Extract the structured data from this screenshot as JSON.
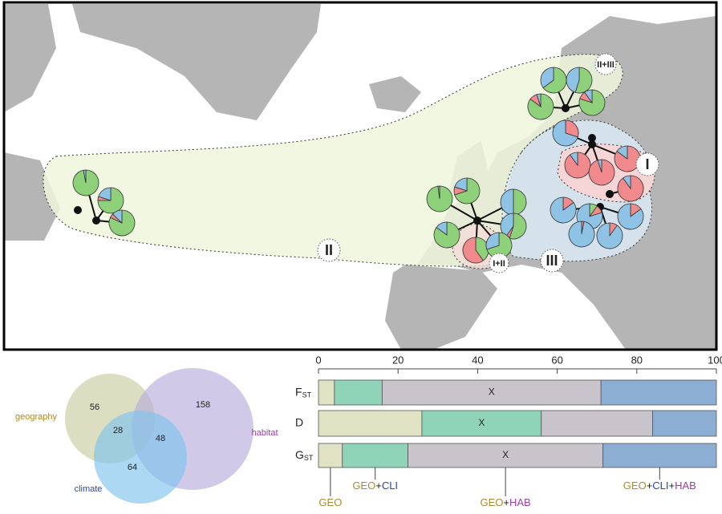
{
  "chart_data": [
    {
      "type": "pie-map",
      "region_labels": [
        "II",
        "III",
        "I",
        "I+II",
        "II+III"
      ],
      "colors": [
        "#8fd17a",
        "#f08a8c",
        "#8fc3e6"
      ],
      "pies": [
        {
          "values": [
            97,
            0,
            3
          ]
        },
        {
          "values": [
            75,
            5,
            20
          ]
        },
        {
          "values": [
            82,
            5,
            13
          ]
        },
        {
          "values": [
            98,
            0,
            2
          ]
        },
        {
          "values": [
            70,
            10,
            20
          ]
        },
        {
          "values": [
            50,
            0,
            50
          ]
        },
        {
          "values": [
            85,
            0,
            15
          ]
        },
        {
          "values": [
            40,
            60,
            0
          ]
        },
        {
          "values": [
            55,
            5,
            40
          ]
        },
        {
          "values": [
            70,
            0,
            30
          ]
        },
        {
          "values": [
            65,
            0,
            35
          ]
        },
        {
          "values": [
            55,
            0,
            45
          ]
        },
        {
          "values": [
            85,
            10,
            5
          ]
        },
        {
          "values": [
            80,
            10,
            10
          ]
        },
        {
          "values": [
            0,
            30,
            70
          ]
        },
        {
          "values": [
            0,
            90,
            10
          ]
        },
        {
          "values": [
            0,
            95,
            5
          ]
        },
        {
          "values": [
            0,
            85,
            15
          ]
        },
        {
          "values": [
            0,
            90,
            10
          ]
        },
        {
          "values": [
            0,
            15,
            85
          ]
        },
        {
          "values": [
            10,
            10,
            80
          ]
        },
        {
          "values": [
            0,
            3,
            97
          ]
        },
        {
          "values": [
            0,
            10,
            90
          ]
        },
        {
          "values": [
            0,
            15,
            85
          ]
        }
      ]
    },
    {
      "type": "venn",
      "sets": [
        {
          "name": "geography",
          "color": "#b08a2a",
          "fill": "#c9cda0"
        },
        {
          "name": "habitat",
          "color": "#9b3fa6",
          "fill": "#b9acdc"
        },
        {
          "name": "climate",
          "color": "#2a4aa0",
          "fill": "#7fc3ec"
        }
      ],
      "values": [
        56,
        158,
        64,
        28,
        48
      ]
    },
    {
      "type": "stacked-bar",
      "orientation": "horizontal",
      "categories": [
        "FST",
        "D",
        "GST"
      ],
      "xlim": [
        0,
        100
      ],
      "xticks": [
        0,
        20,
        40,
        60,
        80,
        100
      ],
      "series": [
        {
          "name": "GEO",
          "color": "#dfe3c3",
          "values": [
            4,
            26,
            6
          ],
          "annotations": [
            null,
            null,
            null
          ]
        },
        {
          "name": "GEO+CLI",
          "color": "#8fd4b8",
          "values": [
            12,
            30,
            16.5
          ],
          "annotations": [
            null,
            "X",
            null
          ]
        },
        {
          "name": "GEO+HAB",
          "color": "#c9c3cc",
          "values": [
            55,
            28,
            49
          ],
          "annotations": [
            "X",
            null,
            "X"
          ]
        },
        {
          "name": "GEO+CLI+HAB",
          "color": "#8daed3",
          "values": [
            29,
            16,
            28.5
          ],
          "annotations": [
            null,
            null,
            null
          ]
        }
      ],
      "part_colors": {
        "GEO": "#b08a2a",
        "CLI": "#2a4aa0",
        "HAB": "#9b3fa6"
      }
    }
  ]
}
